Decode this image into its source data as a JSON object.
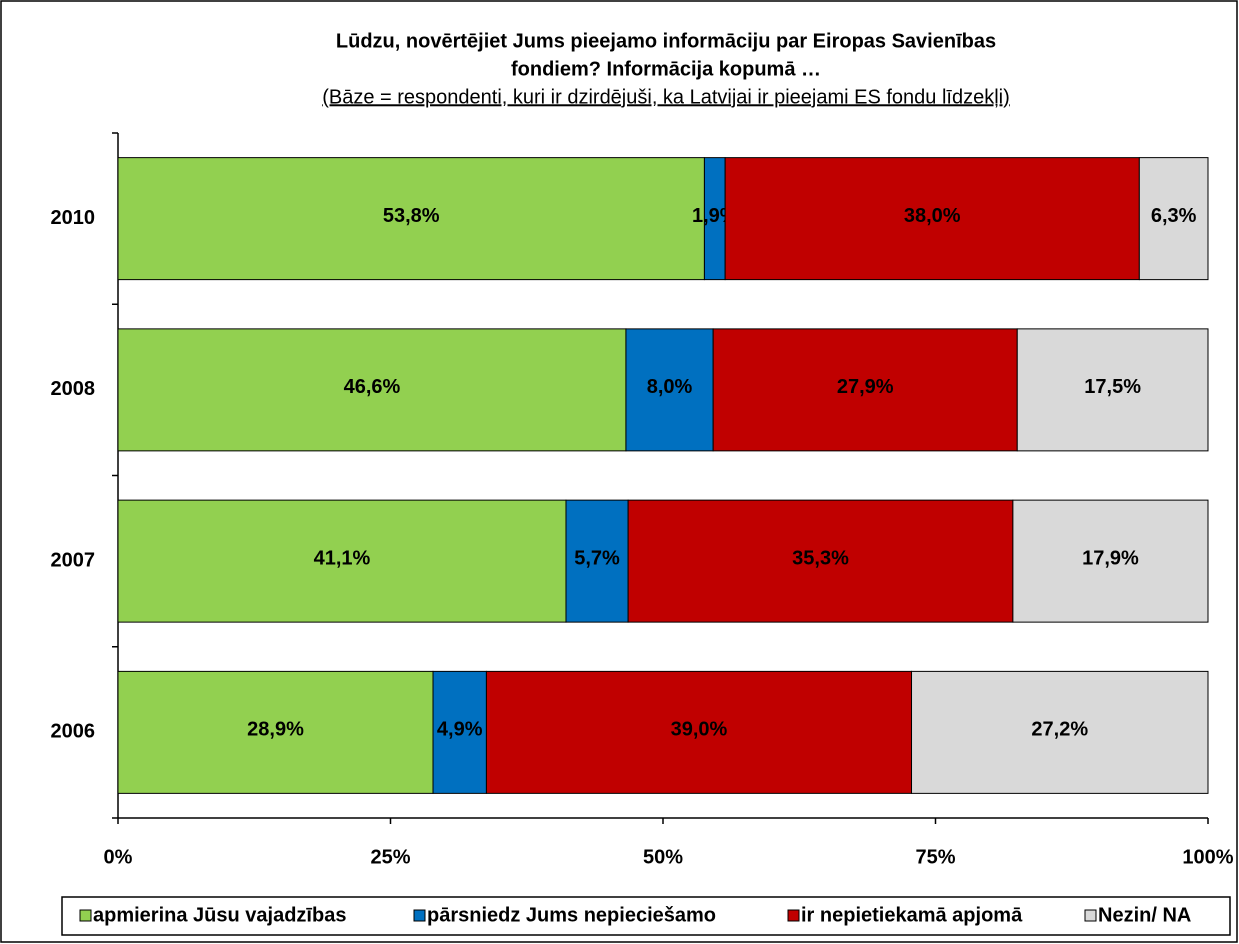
{
  "chart_data": {
    "type": "stacked_bar_horizontal",
    "title": [
      "Lūdzu, novērtējiet Jums pieejamo informāciju par Eiropas Savienības",
      "fondiem? Informācija kopumā …"
    ],
    "subtitle": "(Bāze = respondenti, kuri ir dzirdējuši, ka Latvijai ir pieejami ES fondu līdzekļi)",
    "categories": [
      "2010",
      "2008",
      "2007",
      "2006"
    ],
    "series": [
      {
        "name": "apmierina Jūsu vajadzības",
        "color": "#92d050",
        "values": [
          53.8,
          46.6,
          41.1,
          28.9
        ],
        "value_labels": [
          "53,8%",
          "46,6%",
          "41,1%",
          "28,9%"
        ]
      },
      {
        "name": "pārsniedz Jums nepieciešamo",
        "color": "#0070c0",
        "values": [
          1.9,
          8.0,
          5.7,
          4.9
        ],
        "value_labels": [
          "1,9%",
          "8,0%",
          "5,7%",
          "4,9%"
        ]
      },
      {
        "name": "ir nepietiekamā apjomā",
        "color": "#c00000",
        "values": [
          38.0,
          27.9,
          35.3,
          39.0
        ],
        "value_labels": [
          "38,0%",
          "27,9%",
          "35,3%",
          "39,0%"
        ]
      },
      {
        "name": "Nezin/ NA",
        "color": "#d9d9d9",
        "values": [
          6.3,
          17.5,
          17.9,
          27.2
        ],
        "value_labels": [
          "6,3%",
          "17,5%",
          "17,9%",
          "27,2%"
        ]
      }
    ],
    "xlim": [
      0,
      100
    ],
    "xticks": [
      {
        "value": 0,
        "label": "0%"
      },
      {
        "value": 25,
        "label": "25%"
      },
      {
        "value": 50,
        "label": "50%"
      },
      {
        "value": 75,
        "label": "75%"
      },
      {
        "value": 100,
        "label": "100%"
      }
    ],
    "legend": "bottom"
  }
}
